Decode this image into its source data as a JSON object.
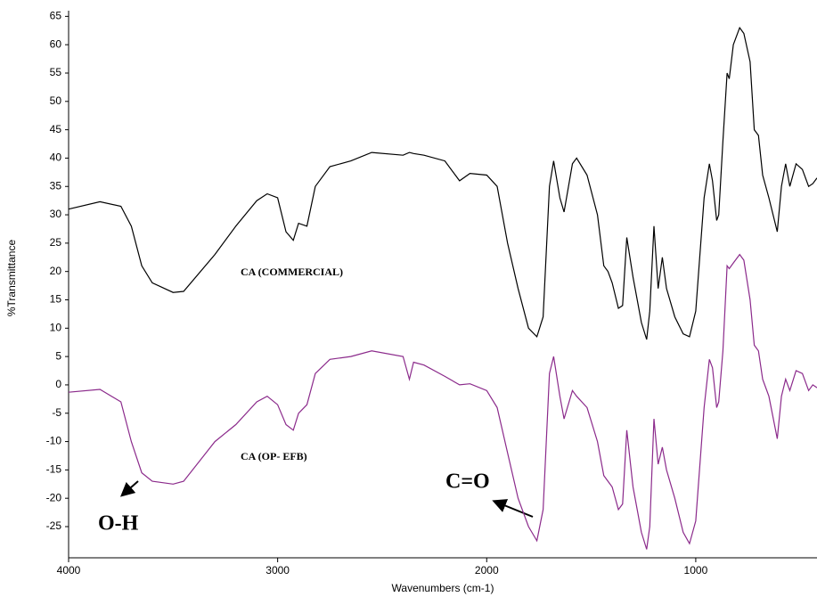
{
  "chart_data": {
    "type": "line",
    "y_label": "%Transmittance",
    "x_label": "Wavenumbers (cm-1)",
    "xlim": [
      4000,
      420
    ],
    "ylim": [
      -30.5,
      66
    ],
    "xticks": [
      4000,
      3000,
      2000,
      1000
    ],
    "yticks": [
      -25,
      -20,
      -15,
      -10,
      -5,
      0,
      5,
      10,
      15,
      20,
      25,
      30,
      35,
      40,
      45,
      50,
      55,
      60,
      65
    ],
    "annotations": [
      "O-H",
      "C=O"
    ],
    "x": [
      4000,
      3850,
      3750,
      3700,
      3650,
      3600,
      3500,
      3450,
      3300,
      3200,
      3100,
      3050,
      3000,
      2960,
      2925,
      2900,
      2860,
      2820,
      2750,
      2650,
      2550,
      2400,
      2370,
      2350,
      2300,
      2200,
      2130,
      2080,
      2000,
      1950,
      1900,
      1850,
      1800,
      1760,
      1730,
      1700,
      1680,
      1650,
      1630,
      1590,
      1570,
      1520,
      1470,
      1440,
      1420,
      1400,
      1370,
      1350,
      1330,
      1300,
      1260,
      1235,
      1220,
      1200,
      1180,
      1160,
      1140,
      1100,
      1060,
      1030,
      1000,
      960,
      935,
      920,
      900,
      890,
      870,
      850,
      840,
      820,
      790,
      770,
      740,
      720,
      700,
      680,
      650,
      610,
      590,
      570,
      550,
      520,
      490,
      460,
      440,
      420
    ],
    "series": [
      {
        "name": "CA (COMMERCIAL)",
        "color": "#000000",
        "values": [
          31,
          32.3,
          31.5,
          28,
          21,
          18,
          16.3,
          16.5,
          23,
          28,
          32.5,
          33.7,
          33,
          27,
          25.5,
          28.5,
          28,
          35,
          38.5,
          39.5,
          41,
          40.5,
          41,
          40.8,
          40.5,
          39.5,
          36,
          37.3,
          37,
          35,
          25,
          17,
          10,
          8.5,
          12,
          35,
          39.5,
          33,
          30.5,
          39,
          40,
          37,
          30,
          21,
          20,
          18,
          13.5,
          14,
          26,
          19,
          11,
          8,
          13,
          28,
          17,
          22.5,
          17,
          12,
          9,
          8.5,
          13,
          33,
          39,
          36,
          29,
          30,
          43,
          55,
          54,
          60,
          63,
          62,
          57,
          45,
          44,
          37,
          33,
          27,
          35,
          39,
          35,
          39,
          38,
          35,
          35.5,
          36.5
        ]
      },
      {
        "name": "CA (OP- EFB)",
        "color": "#8b2a8b",
        "values": [
          -1.3,
          -0.8,
          -3,
          -10,
          -15.5,
          -17,
          -17.5,
          -17,
          -10,
          -7,
          -3,
          -2,
          -3.5,
          -7,
          -8,
          -5,
          -3.5,
          2,
          4.5,
          5,
          6,
          5,
          1,
          4,
          3.5,
          1.5,
          0,
          0.2,
          -1,
          -4,
          -12,
          -20,
          -25,
          -27.5,
          -22,
          2,
          5,
          -2,
          -6,
          -1,
          -2,
          -4,
          -10,
          -16,
          -17,
          -18,
          -22,
          -21,
          -8,
          -18,
          -26,
          -29,
          -25,
          -6,
          -14,
          -11,
          -15,
          -20,
          -26,
          -28,
          -24,
          -4,
          4.5,
          3,
          -4,
          -3,
          6,
          21,
          20.5,
          21.5,
          23,
          22,
          15,
          7,
          6,
          1,
          -2,
          -9.5,
          -2,
          1,
          -1,
          2.5,
          2,
          -1,
          0,
          -0.5
        ]
      }
    ]
  }
}
